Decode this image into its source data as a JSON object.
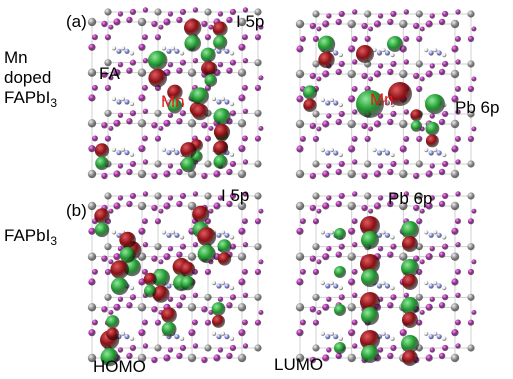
{
  "panels": [
    {
      "panel_label": "(a)",
      "row_label": [
        "Mn",
        "doped",
        "FAPbI",
        "3"
      ],
      "left_orbital": "I 5p",
      "right_orbital": "Pb 6p",
      "fa_label": "FA",
      "dopant_label": "Mn",
      "dopant_color": "#e41a1a"
    },
    {
      "panel_label": "(b)",
      "row_label": [
        "FAPbI",
        "3"
      ],
      "left_orbital": "I 5p",
      "right_orbital": "Pb 6p"
    }
  ],
  "bottom_labels": {
    "left": "HOMO",
    "right": "LUMO"
  },
  "colors": {
    "iodine_atom": "#9a1f9a",
    "lead_atom": "#8a8a8a",
    "nitrogen_atom": "#7a82e0",
    "hydrogen_atom": "#e8e8e8",
    "orbital_positive": "#1f9a2f",
    "orbital_negative": "#8a0f14",
    "bond": "#d0d0d0"
  }
}
